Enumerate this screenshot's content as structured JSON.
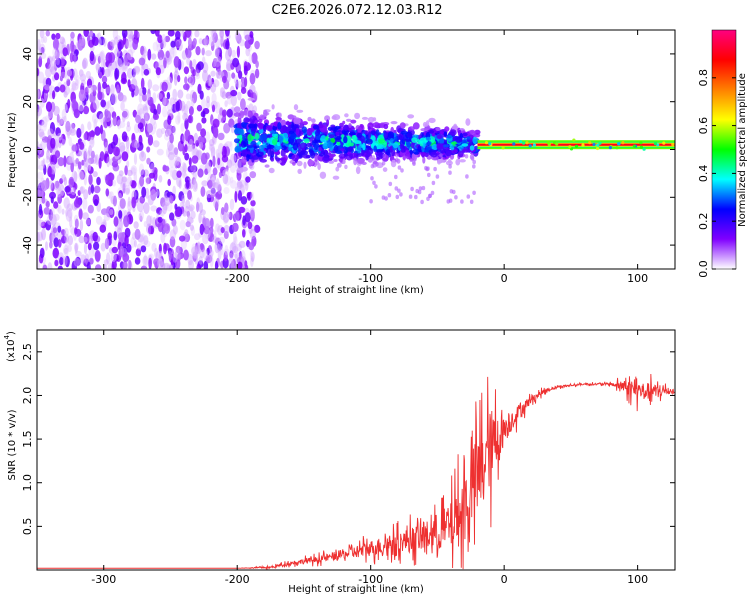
{
  "title": "C2E6.2026.072.12.03.R12",
  "chart_data": [
    {
      "type": "heatmap",
      "title": "",
      "xlabel": "Height of straight line (km)",
      "ylabel": "Frequency (Hz)",
      "xlim": [
        -350,
        128
      ],
      "ylim": [
        -50,
        50
      ],
      "xticks": [
        -300,
        -200,
        -100,
        0,
        100
      ],
      "yticks": [
        -40,
        -20,
        0,
        20,
        40
      ],
      "colorbar": {
        "label": "Normalized spectral amplitude",
        "range": [
          0.0,
          1.0
        ],
        "ticks": [
          0.0,
          0.2,
          0.4,
          0.6,
          0.8
        ],
        "colors": [
          "#ffffff",
          "#8000ff",
          "#0000ff",
          "#00ffff",
          "#00ff00",
          "#ffff00",
          "#ff8000",
          "#ff0000",
          "#ff0080"
        ]
      },
      "regions": [
        {
          "name": "noise",
          "x_range": [
            -350,
            -185
          ],
          "freq_range": [
            -50,
            50
          ],
          "amplitude": 0.1
        },
        {
          "name": "transition",
          "x_range": [
            -200,
            -20
          ],
          "freq_center": 4,
          "freq_spread": 6,
          "amplitude": 0.35
        },
        {
          "name": "carrier",
          "x_range": [
            -20,
            128
          ],
          "freq_center": 2,
          "freq_spread": 1,
          "amplitude": 0.9
        }
      ]
    },
    {
      "type": "line",
      "title": "",
      "xlabel": "Height of straight line (km)",
      "ylabel": "SNR (10 * v/v)",
      "scale_label": "(x10",
      "scale_exponent": "4",
      "xlim": [
        -350,
        128
      ],
      "ylim": [
        0,
        2.75
      ],
      "xticks": [
        -300,
        -200,
        -100,
        0,
        100
      ],
      "yticks": [
        0.5,
        1.0,
        1.5,
        2.0,
        2.5
      ],
      "color": "#ee3030",
      "x": [
        -350,
        -300,
        -250,
        -200,
        -175,
        -160,
        -140,
        -120,
        -100,
        -80,
        -60,
        -40,
        -30,
        -20,
        -10,
        0,
        10,
        20,
        30,
        40,
        60,
        80,
        90,
        100,
        110,
        128
      ],
      "y": [
        0.02,
        0.02,
        0.02,
        0.02,
        0.03,
        0.08,
        0.12,
        0.18,
        0.25,
        0.32,
        0.38,
        0.5,
        0.7,
        1.1,
        1.4,
        1.6,
        1.8,
        1.95,
        2.05,
        2.1,
        2.13,
        2.13,
        2.1,
        2.05,
        2.05,
        2.05
      ],
      "spread": [
        0,
        0,
        0,
        0,
        0.02,
        0.05,
        0.08,
        0.12,
        0.2,
        0.25,
        0.35,
        0.6,
        0.9,
        1.0,
        1.0,
        0.35,
        0.2,
        0.1,
        0.05,
        0.03,
        0.02,
        0.03,
        0.15,
        0.25,
        0.2,
        0.05
      ]
    }
  ]
}
